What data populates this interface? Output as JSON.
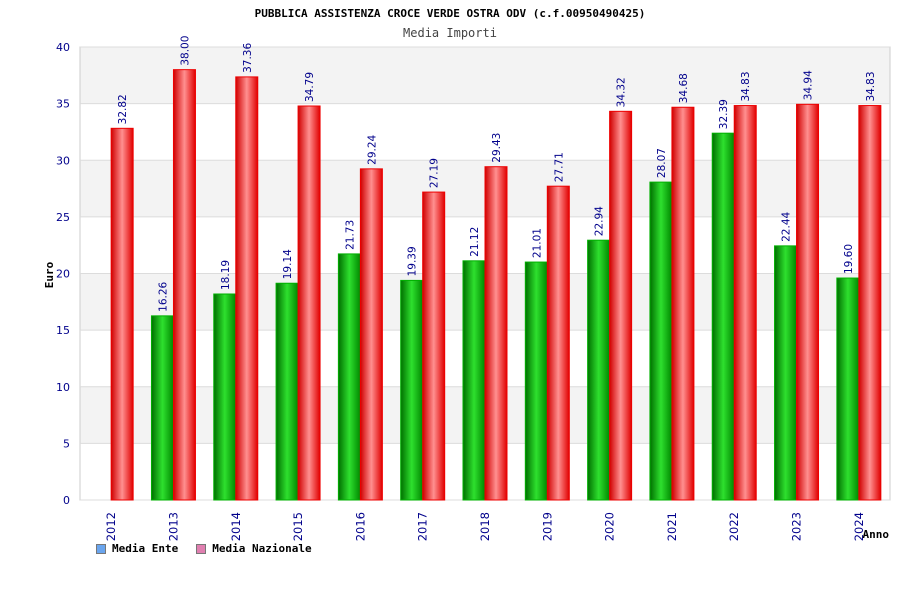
{
  "chart_data": {
    "type": "bar",
    "title": "PUBBLICA ASSISTENZA CROCE VERDE OSTRA ODV (c.f.00950490425)",
    "subtitle": "Media Importi",
    "xlabel": "Anno",
    "ylabel": "Euro",
    "ylim": [
      0,
      40
    ],
    "yticks": [
      "0",
      "5",
      "10",
      "15",
      "20",
      "25",
      "30",
      "35",
      "40"
    ],
    "categories": [
      "2012",
      "2013",
      "2014",
      "2015",
      "2016",
      "2017",
      "2018",
      "2019",
      "2020",
      "2021",
      "2022",
      "2023",
      "2024"
    ],
    "series": [
      {
        "name": "Media Ente",
        "values": [
          null,
          16.26,
          18.19,
          19.14,
          21.73,
          19.39,
          21.12,
          21.01,
          22.94,
          28.07,
          32.39,
          22.44,
          19.6
        ],
        "labels": [
          "",
          "16.26",
          "18.19",
          "19.14",
          "21.73",
          "19.39",
          "21.12",
          "21.01",
          "22.94",
          "28.07",
          "32.39",
          "22.44",
          "19.60"
        ]
      },
      {
        "name": "Media Nazionale",
        "values": [
          32.82,
          38.0,
          37.36,
          34.79,
          29.24,
          27.19,
          29.43,
          27.71,
          34.32,
          34.68,
          34.83,
          34.94,
          34.83
        ],
        "labels": [
          "32.82",
          "38.00",
          "37.36",
          "34.79",
          "29.24",
          "27.19",
          "29.43",
          "27.71",
          "34.32",
          "34.68",
          "34.83",
          "34.94",
          "34.83"
        ]
      }
    ],
    "legend": [
      "Media Ente",
      "Media Nazionale"
    ],
    "legend_colors": [
      "#6aa5ee",
      "#e07fb0"
    ],
    "bar_colors": [
      "#00b000",
      "#ee0000"
    ],
    "grid": true,
    "legend_position": "bottom-left"
  }
}
